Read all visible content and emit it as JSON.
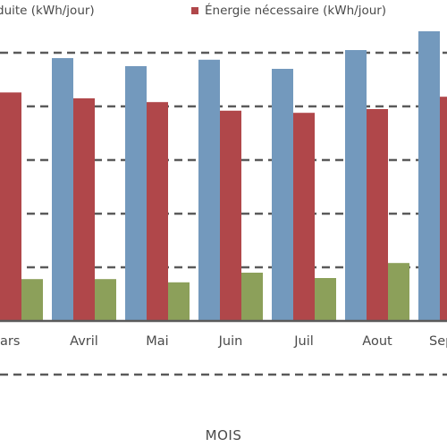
{
  "chart_data": {
    "type": "bar",
    "categories": [
      "Mars",
      "Avril",
      "Mai",
      "Juin",
      "Juil",
      "Aout",
      "Sep"
    ],
    "category_labels_visible": [
      "ars",
      "Avril",
      "Mai",
      "Juin",
      "Juil",
      "Aout",
      "Sep"
    ],
    "series": [
      {
        "name": "Énergie produite (kWh/jour)",
        "legend_visible_text": "duite (kWh/jour)",
        "color": "#7399bd",
        "values": [
          null,
          4.9,
          4.75,
          4.87,
          4.7,
          5.05,
          5.4
        ]
      },
      {
        "name": "Énergie nécessaire (kWh/jour)",
        "color": "#b0474a",
        "values": [
          4.26,
          4.15,
          4.08,
          3.92,
          3.88,
          3.95,
          4.18
        ]
      },
      {
        "name": "",
        "color": "#8ca05a",
        "values": [
          0.78,
          0.78,
          0.72,
          0.9,
          0.8,
          1.08,
          null
        ]
      }
    ],
    "xlabel": "MOIS",
    "ylabel": "",
    "ylim": [
      -1,
      5.4
    ],
    "grid": true,
    "legend_position": "top"
  }
}
